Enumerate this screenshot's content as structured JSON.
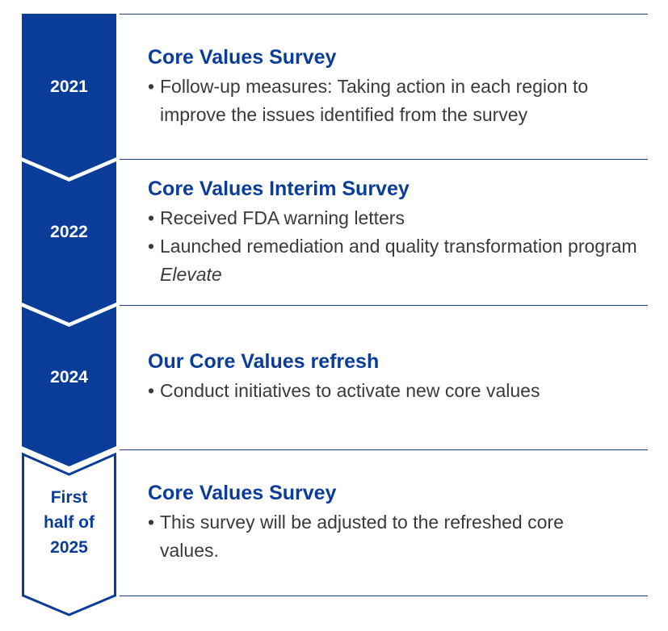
{
  "colors": {
    "navy": "#0a3d9a",
    "divider": "#1f3d8f",
    "body_text": "#3a3a3a"
  },
  "timeline": [
    {
      "year": "2021",
      "title": "Core Values Survey",
      "bullets": [
        "Follow-up measures: Taking action in each region to improve the issues identified from the survey"
      ]
    },
    {
      "year": "2022",
      "title": "Core Values Interim Survey",
      "bullets": [
        "Received FDA warning letters",
        "Launched remediation and quality transformation program Elevate"
      ]
    },
    {
      "year": "2024",
      "title": "Our Core Values refresh",
      "bullets": [
        "Conduct initiatives to activate new core values"
      ]
    },
    {
      "year_lines": [
        "First",
        "half of",
        "2025"
      ],
      "title": "Core Values Survey",
      "bullets": [
        "This survey will be adjusted to the refreshed core values."
      ]
    }
  ],
  "bullet_symbol": "•",
  "italic_term": "Elevate"
}
